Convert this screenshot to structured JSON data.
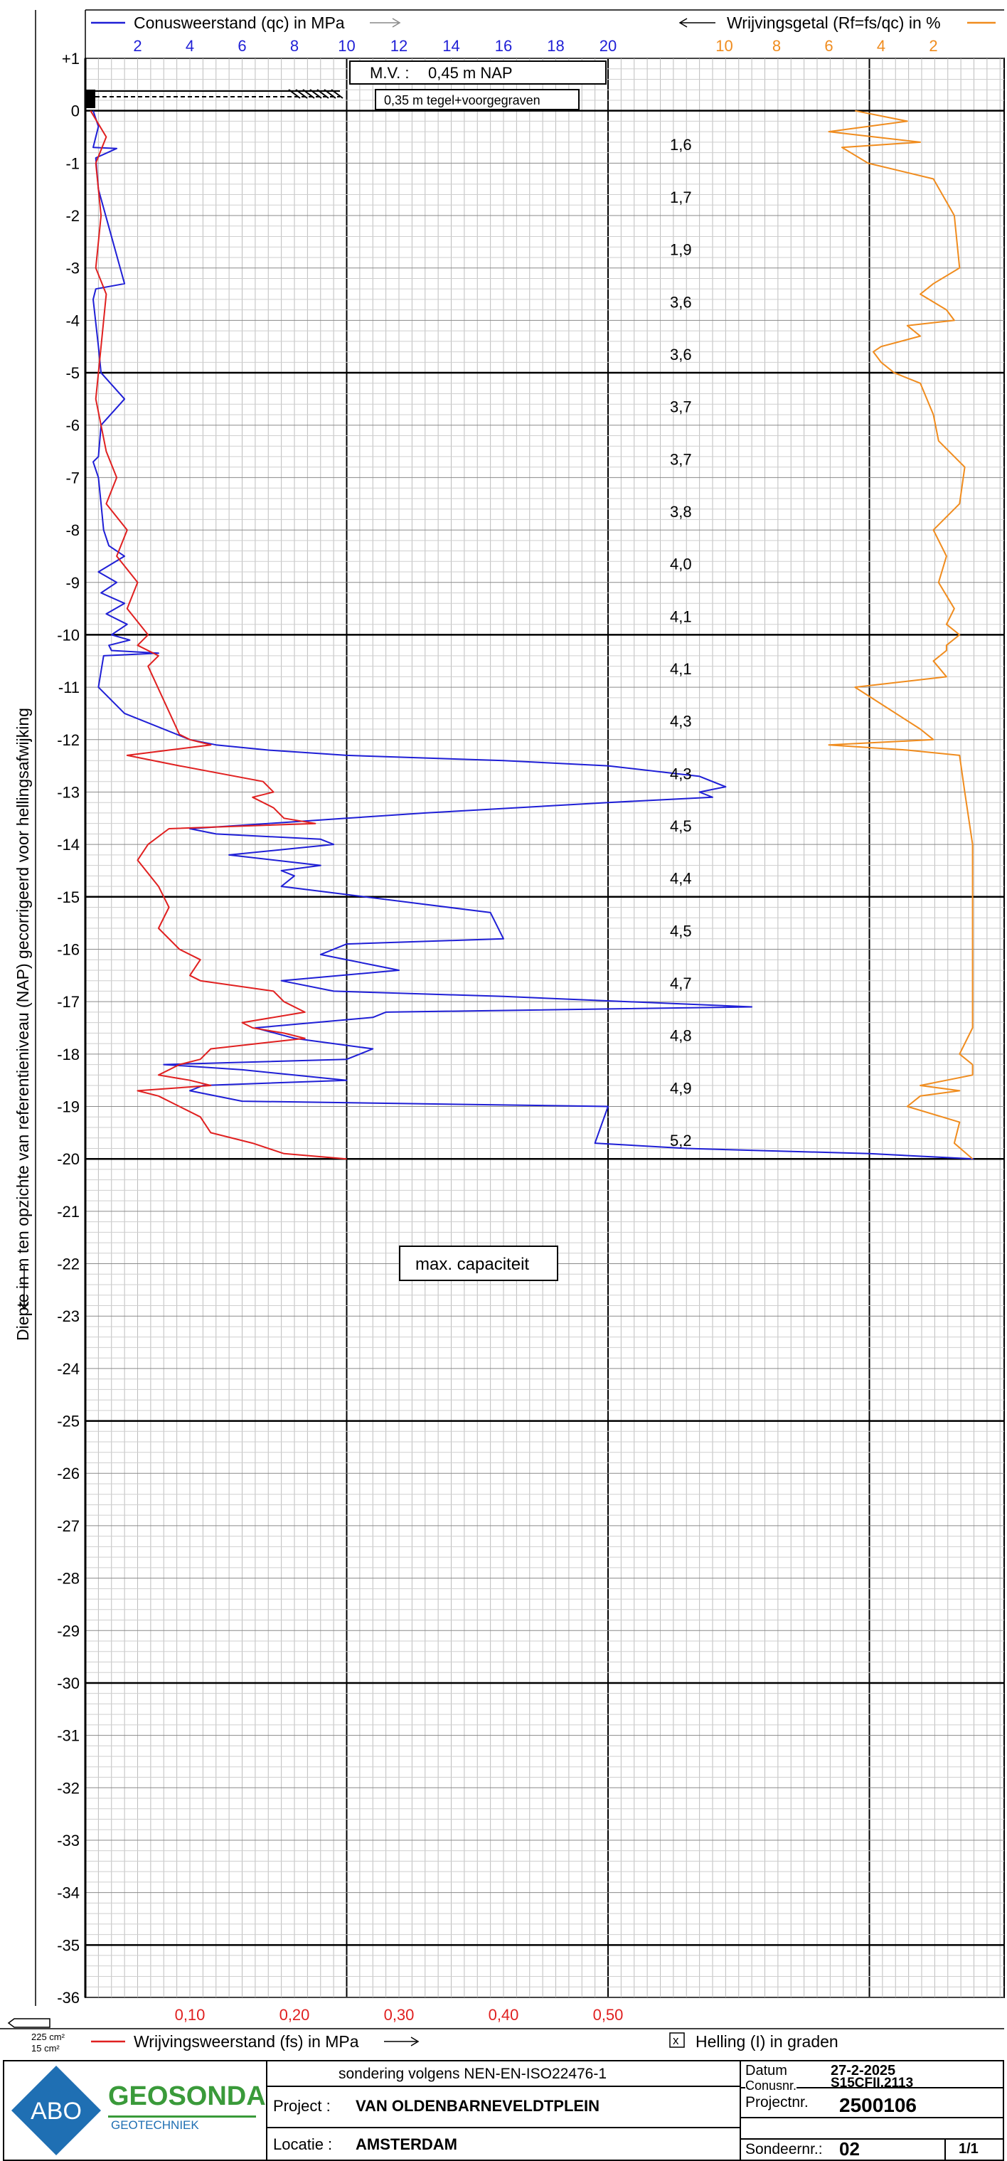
{
  "header": {
    "qc_legend": "Conusweerstand (qc) in MPa",
    "rf_legend": "Wrijvingsgetal (Rf=fs/qc) in %",
    "fs_legend": "Wrijvingsweerstand (fs) in MPa",
    "helling_legend": "Helling (I) in graden",
    "helling_box": "x"
  },
  "depth_axis": {
    "label": "Diepte in m ten opzichte van referentieniveau (NAP) gecorrigeerd voor hellingsafwijking"
  },
  "annotations": {
    "mv_label": "M.V. :",
    "mv_value": "0,45  m NAP",
    "surface_label": "0,35 m  tegel+voorgegraven",
    "max_capacity": "max. capaciteit",
    "cone_area_1": "225  cm²",
    "cone_area_2": "15   cm²"
  },
  "footer": {
    "logo_abo": "ABO",
    "logo_geosonda": "GEOSONDA",
    "logo_geotechniek": "GEOTECHNIEK",
    "standard": "sondering volgens NEN-EN-ISO22476-1",
    "project_label": "Project :",
    "project_value": "VAN OLDENBARNEVELDTPLEIN",
    "locatie_label": "Locatie :",
    "locatie_value": "AMSTERDAM",
    "datum_label": "Datum",
    "datum_value": "27-2-2025",
    "conusnr_label": "Conusnr.",
    "conusnr_value": "S15CFII.2113",
    "projectnr_label": "Projectnr.",
    "projectnr_value": "2500106",
    "sondeernr_label": "Sondeernr.:",
    "sondeernr_value": "02",
    "page": "1/1"
  },
  "chart_data": {
    "type": "line",
    "title": "",
    "depth_axis": {
      "label": "Diepte in m ten opzichte van referentieniveau (NAP) gecorrigeerd voor hellingsafwijking",
      "range": [
        1,
        -36
      ],
      "ticks": [
        "+1",
        "0",
        "-1",
        "-2",
        "-3",
        "-4",
        "-5",
        "-6",
        "-7",
        "-8",
        "-9",
        "-10",
        "-11",
        "-12",
        "-13",
        "-14",
        "-15",
        "-16",
        "-17",
        "-18",
        "-19",
        "-20",
        "-21",
        "-22",
        "-23",
        "-24",
        "-25",
        "-26",
        "-27",
        "-28",
        "-29",
        "-30",
        "-31",
        "-32",
        "-33",
        "-34",
        "-35",
        "-36"
      ]
    },
    "qc_axis": {
      "label": "Conusweerstand (qc) in MPa",
      "range": [
        0,
        35
      ],
      "ticks": [
        "2",
        "4",
        "6",
        "8",
        "10",
        "12",
        "14",
        "16",
        "18",
        "20"
      ],
      "color": "#1f1fd6"
    },
    "fs_axis": {
      "label": "Wrijvingsweerstand (fs) in MPa",
      "range": [
        0,
        0.875
      ],
      "ticks": [
        "0,10",
        "0,20",
        "0,30",
        "0,40",
        "0,50"
      ],
      "color": "#e02020"
    },
    "rf_axis": {
      "label": "Wrijvingsgetal (Rf=fs/qc) in %",
      "reversed": true,
      "range": [
        0,
        14
      ],
      "ticks": [
        "10",
        "8",
        "6",
        "4",
        "2"
      ],
      "color": "#f08c1e"
    },
    "grid": true,
    "series": [
      {
        "name": "Conusweerstand (qc) in MPa",
        "color": "#1f1fd6",
        "x": [
          0.3,
          0.5,
          0.3,
          1.2,
          0.4,
          0.5,
          1.5,
          0.4,
          0.3,
          0.5,
          0.6,
          1.5,
          0.6,
          0.5,
          0.3,
          0.5,
          0.6,
          0.7,
          0.9,
          1.5,
          0.5,
          1.2,
          0.6,
          1.5,
          0.8,
          1.6,
          1.0,
          1.7,
          0.9,
          1.0,
          2.8,
          0.7,
          0.5,
          1.5,
          4.0,
          5.0,
          7.0,
          10.0,
          16.0,
          20.0,
          23.5,
          24.5,
          23.5,
          24.0,
          20.0,
          13.0,
          10.0,
          7.0,
          4.0,
          5.0,
          9.0,
          9.5,
          5.5,
          9.0,
          7.5,
          8.0,
          7.5,
          15.5,
          16.0,
          10.0,
          9.0,
          11.0,
          12.0,
          7.5,
          9.5,
          16.0,
          25.5,
          11.5,
          11.0,
          6.5,
          8.0,
          11.0,
          10.0,
          3.0,
          6.0,
          10.0,
          4.5,
          4.0,
          6.0,
          20.0,
          19.5,
          23.0,
          30.0,
          34.0
        ],
        "y": [
          0.0,
          -0.3,
          -0.7,
          -0.72,
          -0.9,
          -1.5,
          -3.3,
          -3.4,
          -3.6,
          -4.5,
          -5.0,
          -5.5,
          -6.0,
          -6.6,
          -6.7,
          -7.0,
          -7.5,
          -8.0,
          -8.3,
          -8.5,
          -8.8,
          -9.0,
          -9.2,
          -9.4,
          -9.6,
          -9.8,
          -10.0,
          -10.1,
          -10.2,
          -10.3,
          -10.35,
          -10.4,
          -11.0,
          -11.5,
          -12.0,
          -12.1,
          -12.2,
          -12.3,
          -12.4,
          -12.5,
          -12.7,
          -12.9,
          -13.0,
          -13.1,
          -13.2,
          -13.4,
          -13.5,
          -13.6,
          -13.7,
          -13.8,
          -13.9,
          -14.0,
          -14.2,
          -14.4,
          -14.5,
          -14.6,
          -14.8,
          -15.3,
          -15.8,
          -15.9,
          -16.1,
          -16.3,
          -16.4,
          -16.6,
          -16.8,
          -16.9,
          -17.1,
          -17.2,
          -17.3,
          -17.5,
          -17.7,
          -17.9,
          -18.1,
          -18.2,
          -18.3,
          -18.5,
          -18.6,
          -18.7,
          -18.9,
          -19.0,
          -19.7,
          -19.8,
          -19.9,
          -20.0
        ]
      },
      {
        "name": "Wrijvingsweerstand (fs) in MPa",
        "color": "#e02020",
        "x": [
          0.005,
          0.02,
          0.01,
          0.015,
          0.01,
          0.02,
          0.015,
          0.01,
          0.02,
          0.03,
          0.02,
          0.04,
          0.03,
          0.05,
          0.04,
          0.06,
          0.05,
          0.07,
          0.06,
          0.09,
          0.1,
          0.12,
          0.08,
          0.04,
          0.09,
          0.17,
          0.18,
          0.16,
          0.18,
          0.19,
          0.22,
          0.08,
          0.06,
          0.05,
          0.07,
          0.08,
          0.07,
          0.09,
          0.11,
          0.1,
          0.11,
          0.18,
          0.19,
          0.21,
          0.15,
          0.16,
          0.19,
          0.21,
          0.12,
          0.11,
          0.09,
          0.07,
          0.1,
          0.12,
          0.05,
          0.07,
          0.09,
          0.11,
          0.12,
          0.16,
          0.19,
          0.25
        ],
        "y": [
          0.0,
          -0.5,
          -1.0,
          -2.0,
          -3.0,
          -3.5,
          -4.5,
          -5.5,
          -6.5,
          -7.0,
          -7.5,
          -8.0,
          -8.5,
          -9.0,
          -9.5,
          -10.0,
          -10.2,
          -10.4,
          -10.6,
          -11.9,
          -12.0,
          -12.1,
          -12.2,
          -12.3,
          -12.5,
          -12.8,
          -13.0,
          -13.1,
          -13.3,
          -13.5,
          -13.6,
          -13.7,
          -14.0,
          -14.3,
          -14.8,
          -15.2,
          -15.6,
          -16.0,
          -16.2,
          -16.5,
          -16.6,
          -16.8,
          -17.0,
          -17.2,
          -17.4,
          -17.5,
          -17.6,
          -17.7,
          -17.9,
          -18.1,
          -18.2,
          -18.4,
          -18.5,
          -18.6,
          -18.7,
          -18.8,
          -19.0,
          -19.2,
          -19.5,
          -19.7,
          -19.9,
          -20.0
        ]
      },
      {
        "name": "Wrijvingsgetal (Rf=fs/qc) in %",
        "color": "#f08c1e",
        "x": [
          5.0,
          3.0,
          6.0,
          2.5,
          5.5,
          4.5,
          2.0,
          1.2,
          1.0,
          2.0,
          2.5,
          1.5,
          1.2,
          3.0,
          2.5,
          4.0,
          4.3,
          4.0,
          3.5,
          2.5,
          2.0,
          1.8,
          0.8,
          1.0,
          2.0,
          1.5,
          1.8,
          1.2,
          1.5,
          1.0,
          1.5,
          1.5,
          2.0,
          1.5,
          5.0,
          2.5,
          2.0,
          6.0,
          3.0,
          1.0,
          0.8,
          0.5,
          0.5,
          0.5,
          0.5,
          0.5,
          1.0,
          0.5,
          0.5,
          2.5,
          1.0,
          2.5,
          3.0,
          1.0,
          1.2,
          0.5
        ],
        "y": [
          0.0,
          -0.2,
          -0.4,
          -0.6,
          -0.7,
          -1.0,
          -1.3,
          -2.0,
          -3.0,
          -3.3,
          -3.5,
          -3.8,
          -4.0,
          -4.1,
          -4.3,
          -4.5,
          -4.6,
          -4.8,
          -5.0,
          -5.2,
          -5.8,
          -6.3,
          -6.8,
          -7.5,
          -8.0,
          -8.5,
          -9.0,
          -9.5,
          -9.8,
          -10.0,
          -10.2,
          -10.3,
          -10.5,
          -10.8,
          -11.0,
          -11.8,
          -12.0,
          -12.1,
          -12.2,
          -12.3,
          -13.0,
          -14.0,
          -15.0,
          -16.0,
          -17.0,
          -17.5,
          -18.0,
          -18.2,
          -18.4,
          -18.6,
          -18.7,
          -18.8,
          -19.0,
          -19.3,
          -19.7,
          -20.0
        ]
      }
    ],
    "annotations": [
      {
        "depth": -0.7,
        "text": "1,6"
      },
      {
        "depth": -1.7,
        "text": "1,7"
      },
      {
        "depth": -2.7,
        "text": "1,9"
      },
      {
        "depth": -3.7,
        "text": "3,6"
      },
      {
        "depth": -4.7,
        "text": "3,6"
      },
      {
        "depth": -5.7,
        "text": "3,7"
      },
      {
        "depth": -6.7,
        "text": "3,7"
      },
      {
        "depth": -7.7,
        "text": "3,8"
      },
      {
        "depth": -8.7,
        "text": "4,0"
      },
      {
        "depth": -9.7,
        "text": "4,1"
      },
      {
        "depth": -10.7,
        "text": "4,1"
      },
      {
        "depth": -11.7,
        "text": "4,3"
      },
      {
        "depth": -12.7,
        "text": "4,3"
      },
      {
        "depth": -13.7,
        "text": "4,5"
      },
      {
        "depth": -14.7,
        "text": "4,4"
      },
      {
        "depth": -15.7,
        "text": "4,5"
      },
      {
        "depth": -16.7,
        "text": "4,7"
      },
      {
        "depth": -17.7,
        "text": "4,8"
      },
      {
        "depth": -18.7,
        "text": "4,9"
      },
      {
        "depth": -19.7,
        "text": "5,2"
      }
    ]
  }
}
